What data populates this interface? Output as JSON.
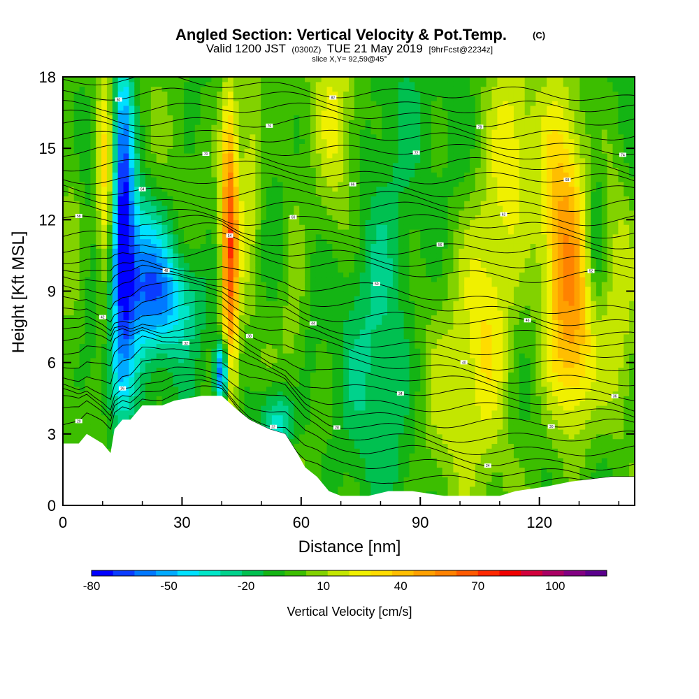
{
  "chart_data": {
    "type": "heatmap",
    "title": "Angled Section: Vertical Velocity & Pot.Temp.",
    "title_unit": "(C)",
    "subtitle_parts": [
      "Valid 1200 JST",
      "(0300Z)",
      "TUE 21 May 2019",
      "[9hrFcst@2234z]"
    ],
    "slice_label": "slice X,Y= 92,59@45°",
    "xlabel": "Distance [nm]",
    "ylabel": "Height [Kft MSL]",
    "xlim": [
      0,
      144
    ],
    "ylim": [
      0,
      18
    ],
    "x_ticks": [
      "0",
      "30",
      "60",
      "90",
      "120"
    ],
    "x_tick_values": [
      0,
      30,
      60,
      90,
      120
    ],
    "y_ticks": [
      "0",
      "3",
      "6",
      "9",
      "12",
      "15",
      "18"
    ],
    "y_tick_values": [
      0,
      3,
      6,
      9,
      12,
      15,
      18
    ],
    "colorbar": {
      "label": "Vertical Velocity [cm/s]",
      "tick_labels": [
        "-80",
        "-50",
        "-20",
        "10",
        "40",
        "70",
        "100"
      ],
      "tick_values": [
        -80,
        -50,
        -20,
        10,
        40,
        70,
        100
      ],
      "range": [
        -80,
        120
      ],
      "step": 10,
      "colors": [
        "#0000ff",
        "#0a3cff",
        "#0078ff",
        "#00aaff",
        "#00e1ff",
        "#00e6c8",
        "#00d28c",
        "#00c050",
        "#14b414",
        "#3cbe00",
        "#82d200",
        "#c3e600",
        "#f0f000",
        "#ffdc00",
        "#ffbe00",
        "#ffa000",
        "#ff8200",
        "#ff5a00",
        "#ff2800",
        "#f00000",
        "#d2003c",
        "#aa0064",
        "#820082",
        "#5a008c"
      ]
    },
    "terrain_profile": [
      [
        0,
        2.6
      ],
      [
        4,
        2.6
      ],
      [
        6,
        3.0
      ],
      [
        10,
        2.6
      ],
      [
        12,
        2.2
      ],
      [
        13,
        3.2
      ],
      [
        15,
        3.6
      ],
      [
        17,
        3.6
      ],
      [
        20,
        4.2
      ],
      [
        25,
        4.2
      ],
      [
        28,
        4.4
      ],
      [
        35,
        4.6
      ],
      [
        40,
        4.6
      ],
      [
        44,
        4.0
      ],
      [
        47,
        3.6
      ],
      [
        52,
        3.2
      ],
      [
        56,
        3.0
      ],
      [
        59,
        2.2
      ],
      [
        61,
        1.6
      ],
      [
        64,
        1.2
      ],
      [
        67,
        0.6
      ],
      [
        70,
        0.4
      ],
      [
        77,
        0.4
      ],
      [
        82,
        0.6
      ],
      [
        88,
        0.6
      ],
      [
        96,
        0.4
      ],
      [
        110,
        0.4
      ],
      [
        114,
        0.6
      ],
      [
        122,
        0.8
      ],
      [
        128,
        1.0
      ],
      [
        138,
        1.2
      ],
      [
        144,
        1.2
      ]
    ],
    "velocity_features": [
      {
        "x": 15,
        "z": 13.0,
        "w": 3.0,
        "h": 6.5,
        "value": -70
      },
      {
        "x": 13,
        "z": 5.2,
        "w": 4.5,
        "h": 2.2,
        "value": -20
      },
      {
        "x": 11,
        "z": 12.5,
        "w": 2.5,
        "h": 5.5,
        "value": 65
      },
      {
        "x": 24,
        "z": 8.6,
        "w": 11.0,
        "h": 2.4,
        "value": -45
      },
      {
        "x": 20,
        "z": 11.0,
        "w": 6.0,
        "h": 2.5,
        "value": -25
      },
      {
        "x": 42,
        "z": 11.0,
        "w": 2.2,
        "h": 6.5,
        "value": 95
      },
      {
        "x": 40,
        "z": 5.6,
        "w": 1.8,
        "h": 1.4,
        "value": -80
      },
      {
        "x": 47,
        "z": 15.0,
        "w": 3.0,
        "h": 5.0,
        "value": 40
      },
      {
        "x": 58,
        "z": 8.5,
        "w": 3.0,
        "h": 7.0,
        "value": 25
      },
      {
        "x": 54,
        "z": 3.5,
        "w": 5.0,
        "h": 1.6,
        "value": -35
      },
      {
        "x": 69,
        "z": 15.5,
        "w": 6.0,
        "h": 6.0,
        "value": 35
      },
      {
        "x": 80,
        "z": 9.5,
        "w": 10.0,
        "h": 8.0,
        "value": -15
      },
      {
        "x": 96,
        "z": 4.0,
        "w": 8.0,
        "h": 4.5,
        "value": 25
      },
      {
        "x": 107,
        "z": 8.5,
        "w": 7.0,
        "h": 5.5,
        "value": 50
      },
      {
        "x": 113,
        "z": 15.0,
        "w": 5.0,
        "h": 4.0,
        "value": 40
      },
      {
        "x": 126,
        "z": 10.5,
        "w": 6.0,
        "h": 6.5,
        "value": 70
      },
      {
        "x": 130,
        "z": 6.0,
        "w": 5.0,
        "h": 3.5,
        "value": 40
      },
      {
        "x": 134,
        "z": 11.5,
        "w": 2.5,
        "h": 3.0,
        "value": -15
      },
      {
        "x": 140,
        "z": 9.0,
        "w": 4.0,
        "h": 6.0,
        "value": 30
      },
      {
        "x": 2,
        "z": 13.0,
        "w": 3.0,
        "h": 5.0,
        "value": 25
      }
    ],
    "theta_contours": {
      "start_z": 2.4,
      "spacing": 0.5,
      "count": 32,
      "labels": [
        "20",
        "22",
        "24",
        "26",
        "28",
        "30",
        "32",
        "34",
        "36",
        "38",
        "40",
        "42",
        "44",
        "46",
        "48",
        "50",
        "52",
        "54",
        "56",
        "58",
        "60",
        "62",
        "64",
        "66",
        "68",
        "70",
        "72",
        "74",
        "76",
        "78",
        "80",
        "82"
      ]
    }
  }
}
